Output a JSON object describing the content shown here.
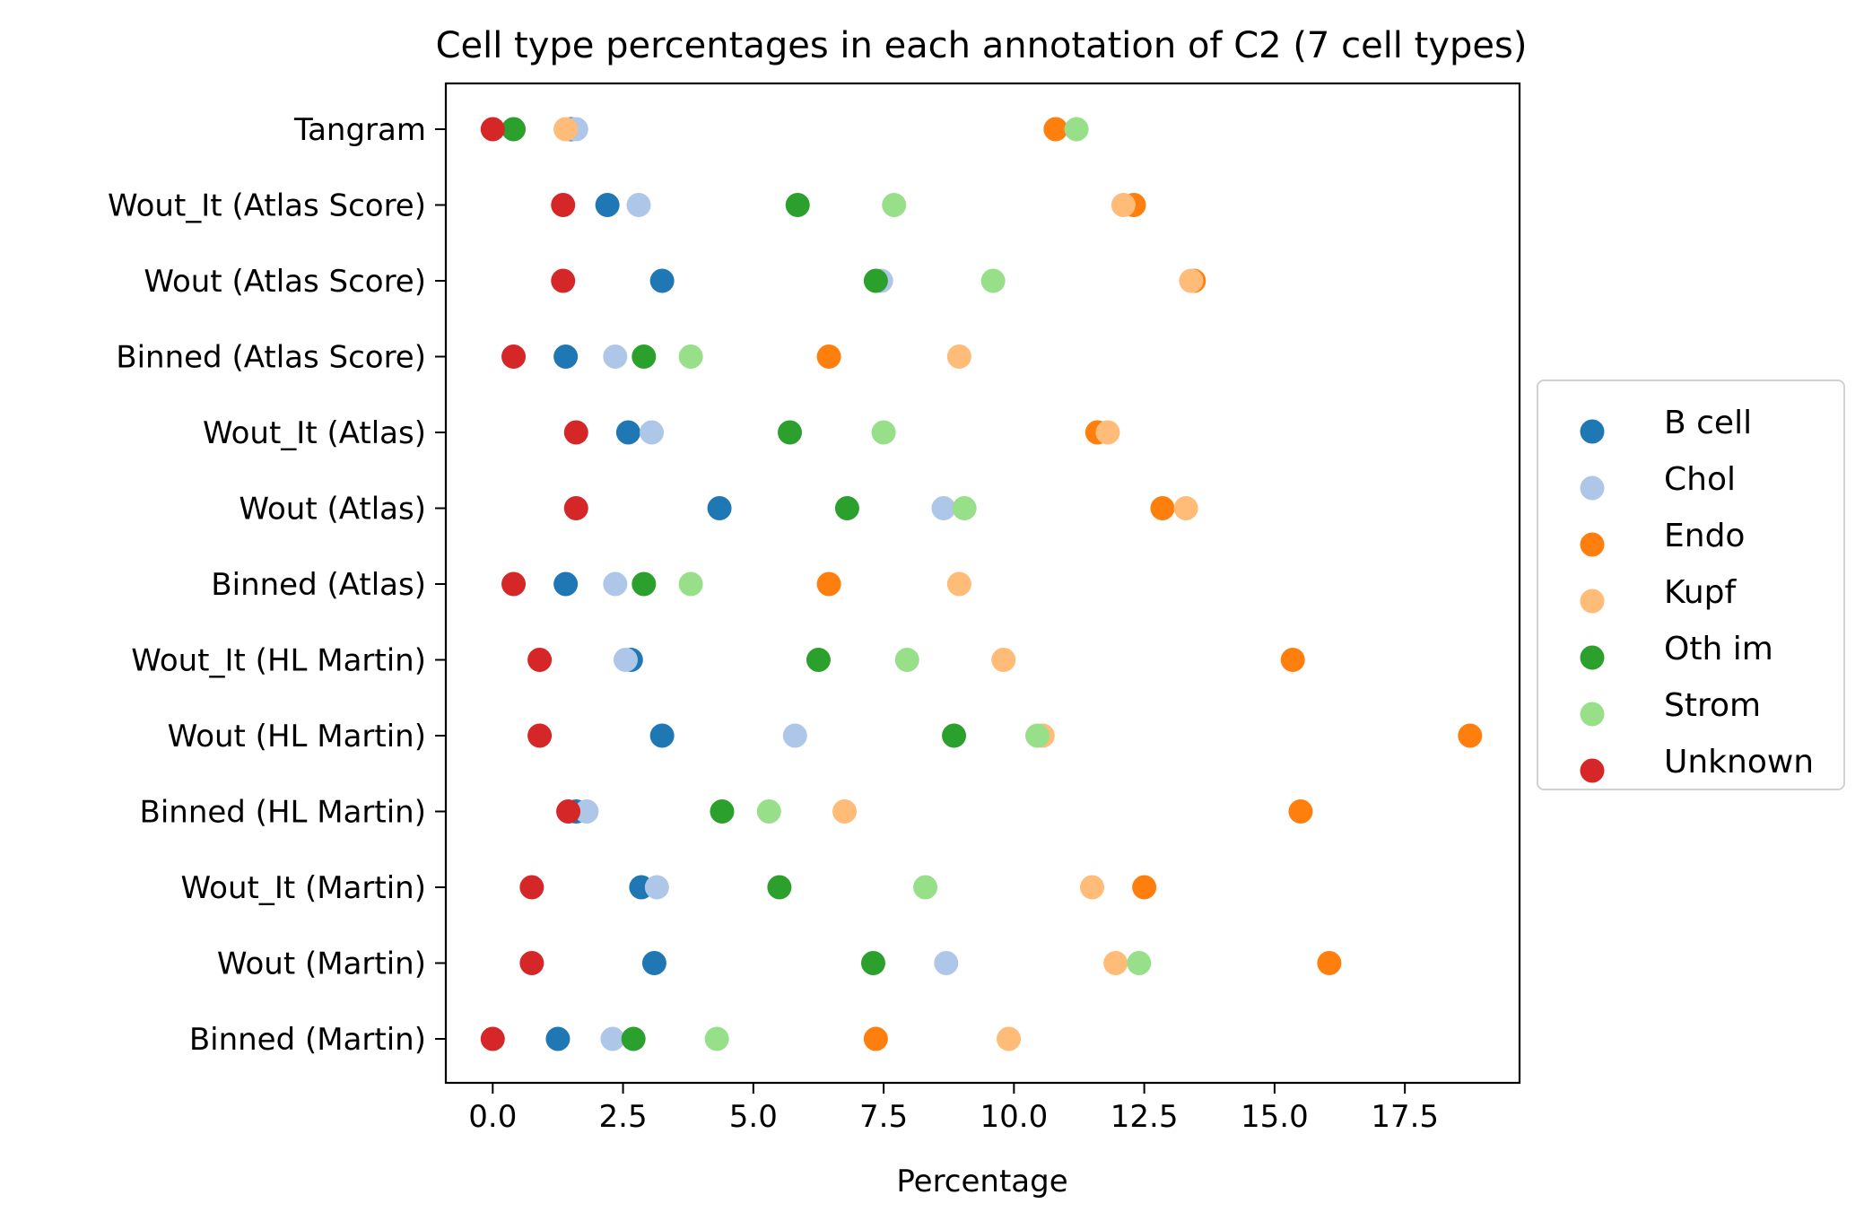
{
  "chart_data": {
    "type": "scatter",
    "title": "Cell type percentages in each annotation of C2 (7 cell types)",
    "xlabel": "Percentage",
    "ylabel": "",
    "xlim": [
      -0.9,
      19.7
    ],
    "xticks": [
      0.0,
      2.5,
      5.0,
      7.5,
      10.0,
      12.5,
      15.0,
      17.5
    ],
    "xtick_labels": [
      "0.0",
      "2.5",
      "5.0",
      "7.5",
      "10.0",
      "12.5",
      "15.0",
      "17.5"
    ],
    "categories": [
      "Tangram",
      "Wout_It (Atlas Score)",
      "Wout (Atlas Score)",
      "Binned (Atlas Score)",
      "Wout_It (Atlas)",
      "Wout (Atlas)",
      "Binned (Atlas)",
      "Wout_It (HL Martin)",
      "Wout (HL Martin)",
      "Binned (HL Martin)",
      "Wout_It (Martin)",
      "Wout (Martin)",
      "Binned (Martin)"
    ],
    "legend_position": "center-right",
    "grid": false,
    "series": [
      {
        "name": "B cell",
        "color": "#1f77b4",
        "values": [
          1.5,
          2.2,
          3.25,
          1.4,
          2.6,
          4.35,
          1.4,
          2.65,
          3.25,
          1.6,
          2.85,
          3.1,
          1.25
        ]
      },
      {
        "name": "Chol",
        "color": "#aec7e8",
        "values": [
          1.6,
          2.8,
          7.45,
          2.35,
          3.05,
          8.65,
          2.35,
          2.55,
          5.8,
          1.8,
          3.15,
          8.7,
          2.3
        ]
      },
      {
        "name": "Endo",
        "color": "#ff7f0e",
        "values": [
          10.8,
          12.3,
          13.45,
          6.45,
          11.6,
          12.85,
          6.45,
          15.35,
          18.75,
          15.5,
          12.5,
          16.05,
          7.35
        ]
      },
      {
        "name": "Kupf",
        "color": "#ffbb78",
        "values": [
          1.4,
          12.1,
          13.4,
          8.95,
          11.8,
          13.3,
          8.95,
          9.8,
          10.55,
          6.75,
          11.5,
          11.95,
          9.9
        ]
      },
      {
        "name": "Oth im",
        "color": "#2ca02c",
        "values": [
          0.4,
          5.85,
          7.35,
          2.9,
          5.7,
          6.8,
          2.9,
          6.25,
          8.85,
          4.4,
          5.5,
          7.3,
          2.7
        ]
      },
      {
        "name": "Strom",
        "color": "#98df8a",
        "values": [
          11.2,
          7.7,
          9.6,
          3.8,
          7.5,
          9.05,
          3.8,
          7.95,
          10.45,
          5.3,
          8.3,
          12.4,
          4.3
        ]
      },
      {
        "name": "Unknown",
        "color": "#d62728",
        "values": [
          0.0,
          1.35,
          1.35,
          0.4,
          1.6,
          1.6,
          0.4,
          0.9,
          0.9,
          1.45,
          0.75,
          0.75,
          0.0
        ]
      }
    ]
  }
}
